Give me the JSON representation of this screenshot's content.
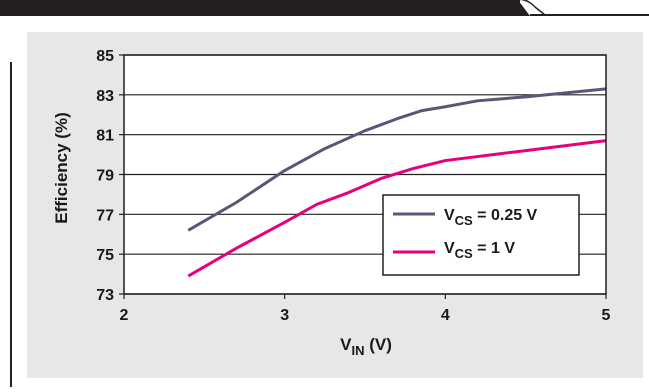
{
  "chart_data": {
    "type": "line",
    "xlabel": "V",
    "xlabel_sub": "IN",
    "xlabel_unit": " (V)",
    "ylabel": "Efficiency (%)",
    "xlim": [
      2,
      5
    ],
    "ylim": [
      73,
      85
    ],
    "x_ticks": [
      "2",
      "3",
      "4",
      "5"
    ],
    "y_ticks": [
      "73",
      "75",
      "77",
      "79",
      "81",
      "83",
      "85"
    ],
    "grid": "horizontal",
    "legend_position": "bottom-right",
    "series": [
      {
        "name": "V",
        "name_sub": "CS",
        "name_suffix": " = 0.25 V",
        "color": "#5b5577",
        "x": [
          2.4,
          2.7,
          3.0,
          3.25,
          3.5,
          3.7,
          3.85,
          4.0,
          4.2,
          4.5,
          4.75,
          5.0
        ],
        "y": [
          76.2,
          77.6,
          79.2,
          80.3,
          81.2,
          81.8,
          82.2,
          82.4,
          82.7,
          82.9,
          83.1,
          83.3
        ]
      },
      {
        "name": "V",
        "name_sub": "CS",
        "name_suffix": " = 1 V",
        "color": "#e6007e",
        "x": [
          2.4,
          2.7,
          3.0,
          3.2,
          3.4,
          3.6,
          3.8,
          4.0,
          4.5,
          5.0
        ],
        "y": [
          73.9,
          75.3,
          76.6,
          77.5,
          78.1,
          78.8,
          79.3,
          79.7,
          80.2,
          80.7
        ]
      }
    ]
  }
}
